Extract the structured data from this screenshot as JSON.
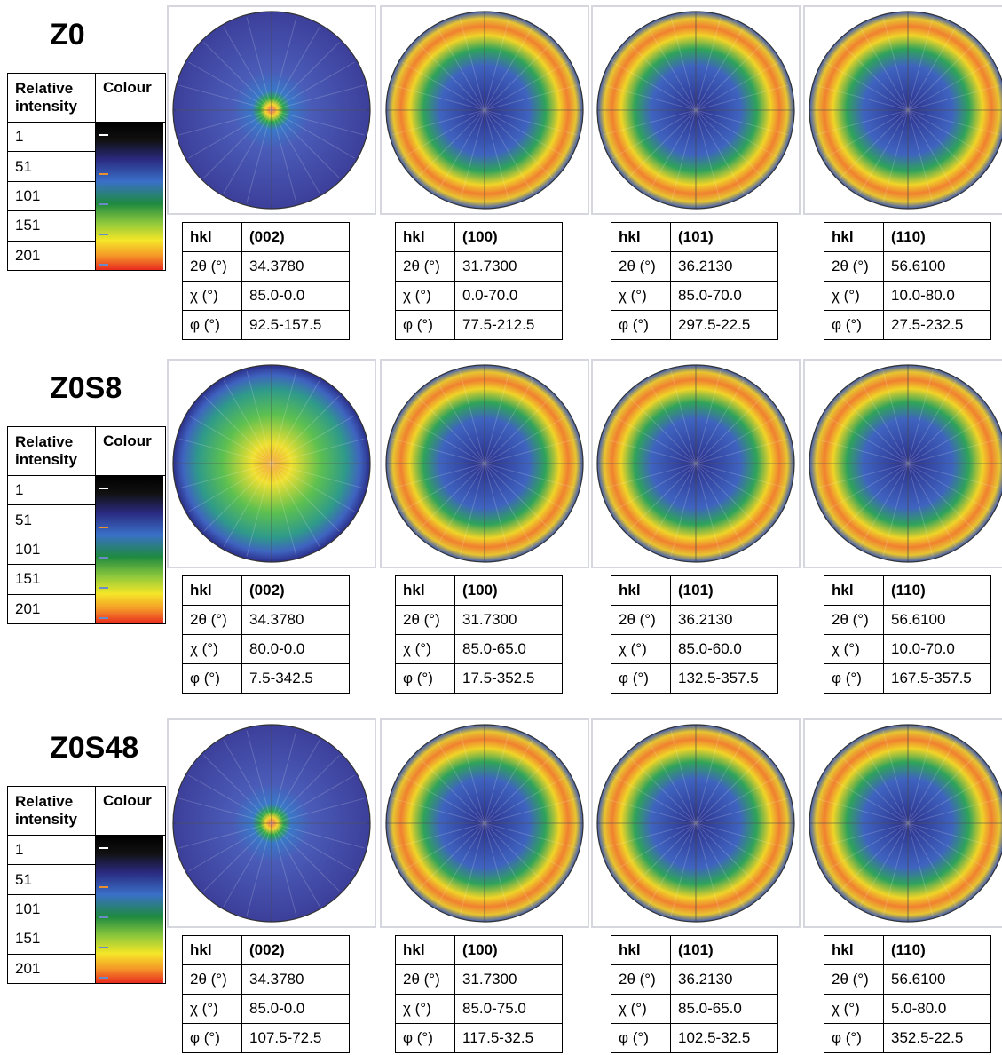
{
  "row_labels": {
    "hkl": "hkl",
    "two_theta": "2θ (°)",
    "chi": "χ (°)",
    "phi": "φ (°)"
  },
  "samples": [
    {
      "name": "Z0",
      "legend": {
        "headers": [
          "Relative intensity",
          "Colour"
        ],
        "levels": [
          1,
          51,
          101,
          151,
          201
        ]
      },
      "figures": [
        {
          "hkl": "(002)",
          "two_theta": "34.3780",
          "chi": "85.0-0.0",
          "phi": "92.5-157.5"
        },
        {
          "hkl": "(100)",
          "two_theta": "31.7300",
          "chi": "0.0-70.0",
          "phi": "77.5-212.5"
        },
        {
          "hkl": "(101)",
          "two_theta": "36.2130",
          "chi": "85.0-70.0",
          "phi": "297.5-22.5"
        },
        {
          "hkl": "(110)",
          "two_theta": "56.6100",
          "chi": "10.0-80.0",
          "phi": "27.5-232.5"
        }
      ]
    },
    {
      "name": "Z0S8",
      "legend": {
        "headers": [
          "Relative intensity",
          "Colour"
        ],
        "levels": [
          1,
          51,
          101,
          151,
          201
        ]
      },
      "figures": [
        {
          "hkl": "(002)",
          "two_theta": "34.3780",
          "chi": "80.0-0.0",
          "phi": "7.5-342.5"
        },
        {
          "hkl": "(100)",
          "two_theta": "31.7300",
          "chi": "85.0-65.0",
          "phi": "17.5-352.5"
        },
        {
          "hkl": "(101)",
          "two_theta": "36.2130",
          "chi": "85.0-60.0",
          "phi": "132.5-357.5"
        },
        {
          "hkl": "(110)",
          "two_theta": "56.6100",
          "chi": "10.0-70.0",
          "phi": "167.5-357.5"
        }
      ]
    },
    {
      "name": "Z0S48",
      "legend": {
        "headers": [
          "Relative intensity",
          "Colour"
        ],
        "levels": [
          1,
          51,
          101,
          151,
          201
        ]
      },
      "figures": [
        {
          "hkl": "(002)",
          "two_theta": "34.3780",
          "chi": "85.0-0.0",
          "phi": "107.5-72.5"
        },
        {
          "hkl": "(100)",
          "two_theta": "31.7300",
          "chi": "85.0-75.0",
          "phi": "117.5-32.5"
        },
        {
          "hkl": "(101)",
          "two_theta": "36.2130",
          "chi": "85.0-65.0",
          "phi": "102.5-32.5"
        },
        {
          "hkl": "(110)",
          "two_theta": "56.6100",
          "chi": "5.0-80.0",
          "phi": "352.5-22.5"
        }
      ]
    }
  ]
}
